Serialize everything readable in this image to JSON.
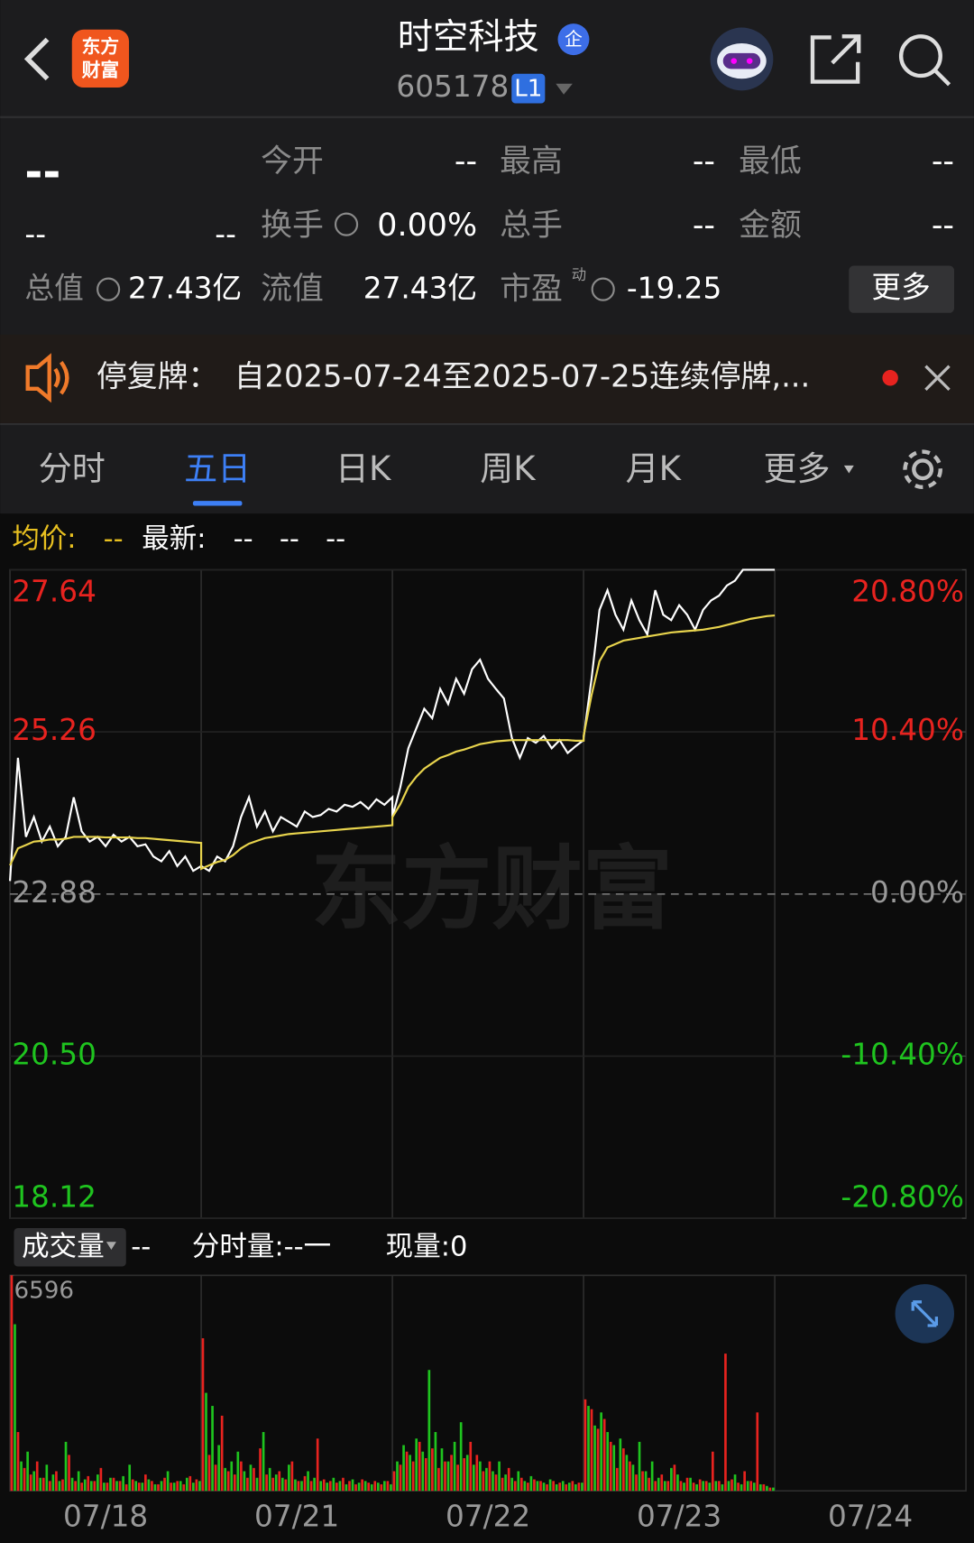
{
  "header": {
    "title": "时空科技",
    "badge": "企",
    "code": "605178",
    "level": "L1",
    "logo": [
      "东方",
      "财富"
    ]
  },
  "quote": {
    "price": "--",
    "change": "--",
    "change_pct": "--",
    "fields": [
      [
        "今开",
        "--"
      ],
      [
        "最高",
        "--"
      ],
      [
        "最低",
        "--"
      ],
      [
        "换手",
        "0.00%"
      ],
      [
        "总手",
        "--"
      ],
      [
        "金额",
        "--"
      ],
      [
        "总值",
        "27.43亿"
      ],
      [
        "流值",
        "27.43亿"
      ],
      [
        "市盈",
        "-19.25"
      ]
    ],
    "pe_tag": "动",
    "more": "更多"
  },
  "notice": {
    "label": "停复牌：",
    "text": "自2025-07-24至2025-07-25连续停牌,..."
  },
  "tabs": {
    "items": [
      "分时",
      "五日",
      "日K",
      "周K",
      "月K",
      "更多"
    ],
    "active": 1
  },
  "legend": {
    "avg_label": "均价:",
    "avg_value": "--",
    "latest_label": "最新:",
    "latest_values": [
      "--",
      "--",
      "--"
    ]
  },
  "watermark": "东方财富",
  "volume_bar": {
    "selector": "成交量",
    "value": "--",
    "tick_label": "分时量:--一",
    "current": "现量:0"
  },
  "chart_data": [
    {
      "type": "line",
      "x": [
        "07/18",
        "07/21",
        "07/22",
        "07/23",
        "07/24"
      ],
      "ylim": [
        18.12,
        27.64
      ],
      "yticks": [
        27.64,
        25.26,
        22.88,
        {
          "value": 20.5,
          "label": "20.50"
        },
        18.12
      ],
      "y2lim": [
        -20.8,
        20.8
      ],
      "y2ticks": [
        {
          "value": 20.8,
          "label": "20.80%"
        },
        {
          "value": 10.4,
          "label": "10.40%"
        },
        {
          "value": 0,
          "label": "0.00%"
        },
        {
          "value": -10.4,
          "label": "-10.40%"
        },
        {
          "value": -20.8,
          "label": "-20.80%"
        }
      ],
      "grid": true,
      "series": [
        {
          "color": "#ffffff",
          "values": [
            [
              23.07,
              24.88,
              23.72,
              24.01,
              23.65,
              23.87,
              23.58,
              23.72,
              24.3,
              23.8,
              23.65,
              23.72,
              23.58,
              23.75,
              23.65,
              23.72,
              23.58,
              23.61,
              23.43,
              23.36,
              23.51,
              23.29,
              23.43,
              23.22,
              23.29
            ],
            [
              23.29,
              23.22,
              23.43,
              23.36,
              23.58,
              24.01,
              24.3,
              23.87,
              24.09,
              23.8,
              24.01,
              23.94,
              23.87,
              24.09,
              24.01,
              24.04,
              24.13,
              24.09,
              24.19,
              24.16,
              24.23,
              24.13,
              24.27,
              24.19,
              24.3
            ],
            [
              24.01,
              24.45,
              25.02,
              25.31,
              25.6,
              25.46,
              25.89,
              25.67,
              26.04,
              25.82,
              26.18,
              26.32,
              26.04,
              25.89,
              25.75,
              25.17,
              24.88,
              25.17,
              25.1,
              25.2,
              25.02,
              25.14,
              24.95,
              25.05,
              25.14
            ],
            [
              25.17,
              26.04,
              27.05,
              27.34,
              26.98,
              26.76,
              27.19,
              26.9,
              26.69,
              27.34,
              26.98,
              26.9,
              27.12,
              26.98,
              26.76,
              27.05,
              27.19,
              27.26,
              27.41,
              27.48,
              27.64,
              27.64,
              27.64,
              27.64,
              27.64
            ],
            []
          ]
        },
        {
          "color": "#e8d44d",
          "values": [
            [
              23.3,
              23.55,
              23.6,
              23.65,
              23.66,
              23.68,
              23.68,
              23.69,
              23.72,
              23.72,
              23.72,
              23.72,
              23.71,
              23.71,
              23.71,
              23.71,
              23.7,
              23.7,
              23.69,
              23.68,
              23.67,
              23.66,
              23.65,
              23.64,
              23.63
            ],
            [
              23.25,
              23.3,
              23.35,
              23.38,
              23.45,
              23.55,
              23.62,
              23.66,
              23.7,
              23.72,
              23.74,
              23.76,
              23.77,
              23.78,
              23.79,
              23.8,
              23.81,
              23.82,
              23.83,
              23.84,
              23.85,
              23.86,
              23.87,
              23.88,
              23.89
            ],
            [
              24.01,
              24.2,
              24.45,
              24.6,
              24.72,
              24.8,
              24.88,
              24.92,
              24.97,
              25.0,
              25.04,
              25.08,
              25.1,
              25.12,
              25.13,
              25.14,
              25.14,
              25.14,
              25.14,
              25.14,
              25.14,
              25.14,
              25.14,
              25.13,
              25.13
            ],
            [
              25.2,
              25.8,
              26.3,
              26.5,
              26.55,
              26.6,
              26.62,
              26.64,
              26.66,
              26.68,
              26.7,
              26.72,
              26.73,
              26.74,
              26.75,
              26.76,
              26.78,
              26.8,
              26.83,
              26.86,
              26.89,
              26.92,
              26.94,
              26.96,
              26.97
            ],
            []
          ]
        }
      ]
    },
    {
      "type": "bar",
      "ylim": [
        0,
        6596
      ],
      "yticks": [
        6596
      ],
      "series": [
        {
          "color": "#e8231f",
          "values": [
            [
              6596,
              1800,
              700,
              500,
              900,
              400,
              300,
              600,
              350,
              1100,
              300,
              250,
              450,
              300,
              700,
              250,
              400,
              300,
              200,
              350,
              250,
              500,
              300,
              200,
              400,
              250,
              300,
              200,
              450,
              350
            ],
            [
              4670,
              1100,
              800,
              2300,
              600,
              500,
              900,
              400,
              700,
              1300,
              500,
              400,
              600,
              350,
              900,
              300,
              450,
              300,
              1600,
              350,
              300,
              250,
              400,
              300,
              200,
              350,
              250,
              300,
              200,
              300
            ],
            [
              600,
              800,
              1200,
              900,
              1500,
              1000,
              1300,
              700,
              900,
              1100,
              800,
              1000,
              1500,
              1100,
              600,
              900,
              500,
              400,
              700,
              300,
              400,
              250,
              350,
              300,
              200,
              300,
              250,
              200,
              300,
              250
            ],
            [
              2800,
              2500,
              1900,
              2200,
              1500,
              700,
              1300,
              900,
              500,
              600,
              400,
              300,
              500,
              300,
              800,
              300,
              400,
              250,
              350,
              300,
              1200,
              300,
              4200,
              350,
              250,
              600,
              300,
              2400,
              200,
              100
            ],
            []
          ]
        },
        {
          "color": "#1fc41f",
          "values": [
            [
              5100,
              900,
              1200,
              600,
              400,
              800,
              500,
              300,
              1500,
              400,
              600,
              350,
              300,
              500,
              250,
              400,
              300,
              450,
              800,
              300,
              250,
              350,
              200,
              300,
              600,
              250,
              300,
              400,
              250,
              300
            ],
            [
              3000,
              2600,
              1400,
              700,
              900,
              1200,
              600,
              800,
              400,
              1800,
              700,
              500,
              400,
              800,
              350,
              300,
              600,
              400,
              300,
              250,
              400,
              300,
              200,
              350,
              250,
              300,
              200,
              250,
              300,
              200
            ],
            [
              900,
              1400,
              1100,
              1600,
              1200,
              3700,
              1800,
              1300,
              900,
              1500,
              2100,
              1100,
              800,
              900,
              700,
              600,
              900,
              500,
              400,
              600,
              300,
              450,
              300,
              250,
              350,
              200,
              300,
              250,
              200,
              250
            ],
            [
              2600,
              2000,
              2400,
              1800,
              1400,
              1600,
              1100,
              800,
              1500,
              600,
              900,
              400,
              300,
              700,
              500,
              250,
              400,
              200,
              300,
              250,
              300,
              200,
              300,
              500,
              200,
              300,
              250,
              200,
              150,
              100
            ],
            []
          ]
        }
      ]
    }
  ]
}
